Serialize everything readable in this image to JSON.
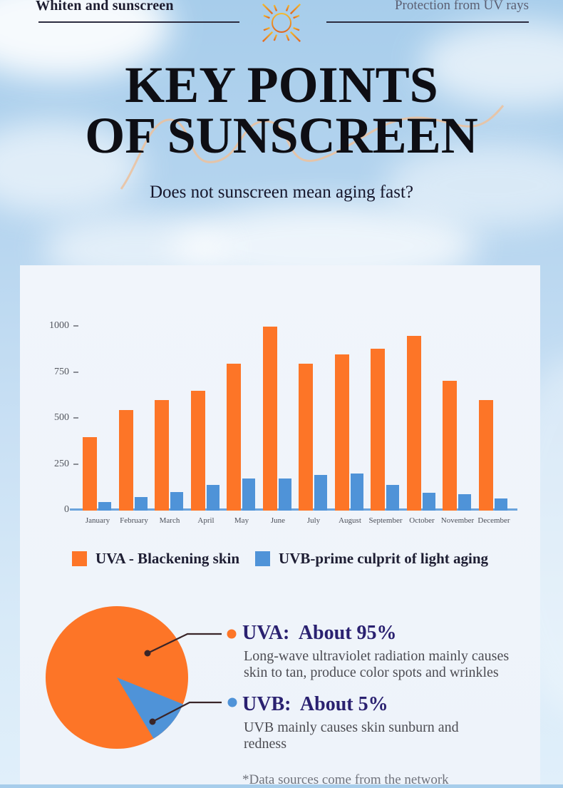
{
  "header": {
    "left_label": "Whiten and sunscreen",
    "right_label": "Protection from UV rays"
  },
  "title": {
    "line1": "KEY POINTS",
    "line2": "OF SUNSCREEN",
    "subtitle": "Does not sunscreen mean aging fast?"
  },
  "chart_data": [
    {
      "type": "bar",
      "categories": [
        "January",
        "February",
        "March",
        "April",
        "May",
        "June",
        "July",
        "August",
        "September",
        "October",
        "November",
        "December"
      ],
      "series": [
        {
          "name": "UVA - Blackening skin",
          "color": "#fd7527",
          "values": [
            400,
            545,
            600,
            650,
            800,
            1000,
            800,
            850,
            880,
            950,
            705,
            600
          ]
        },
        {
          "name": "UVB-prime culprit of light aging",
          "color": "#4f93d8",
          "values": [
            45,
            75,
            100,
            140,
            175,
            175,
            195,
            200,
            140,
            95,
            90,
            65
          ]
        }
      ],
      "title": "",
      "xlabel": "",
      "ylabel": "",
      "yticks": [
        0,
        250,
        500,
        750,
        1000
      ],
      "ylim": [
        0,
        1050
      ],
      "grid": false,
      "legend_position": "bottom"
    },
    {
      "type": "pie",
      "labels": [
        "UVA",
        "UVB"
      ],
      "values": [
        95,
        5
      ],
      "colors": [
        "#fd7527",
        "#4f93d8"
      ]
    }
  ],
  "pie_section": {
    "uva": {
      "heading": "UVA:  About 95%",
      "percent": "About 95%",
      "desc": "Long-wave ultraviolet radiation mainly causes skin to tan, produce color spots and wrinkles"
    },
    "uvb": {
      "heading": "UVB:  About 5%",
      "percent": "About 5%",
      "desc": "UVB mainly causes skin sunburn and redness"
    }
  },
  "footnote": "*Data sources come from the network",
  "colors": {
    "uva_orange": "#fd7527",
    "uvb_blue": "#4f93d8",
    "heading_navy": "#2a2170",
    "leader_line": "#3a2528",
    "axis_line": "#6aa3dc",
    "panel_bg": "#eff4fa"
  }
}
